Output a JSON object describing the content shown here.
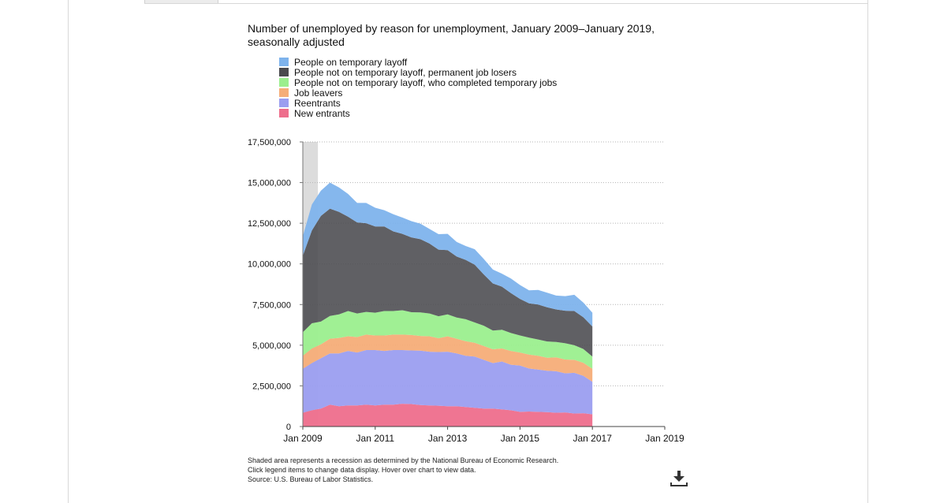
{
  "colors": {
    "temporary_layoff": "#7eb3ec",
    "permanent_job_losers": "#4a4a4e",
    "completed_temporary_jobs": "#9bef8e",
    "job_leavers": "#f5ad78",
    "reentrants": "#9b9ef0",
    "new_entrants": "#ee6e8c",
    "recession": "#dcdcdc",
    "gridline": "#b5b5b5"
  },
  "notes": {
    "recession": "Shaded area represents a recession as determined by the National Bureau of Economic Research.",
    "interaction": "Click legend items to change data display. Hover over chart to view data.",
    "source": "Source: U.S. Bureau of Labor Statistics."
  },
  "download": {
    "icon": "download-icon"
  },
  "chart_data": {
    "type": "area",
    "stacked": true,
    "title": "Number of unemployed by reason for unemployment, January 2009–January 2019, seasonally adjusted",
    "xlabel": "",
    "ylabel": "",
    "legend_position": "top-left",
    "grid": "horizontal dotted",
    "x_ticks": [
      "Jan 2009",
      "Jan 2011",
      "Jan 2013",
      "Jan 2015",
      "Jan 2017",
      "Jan 2019"
    ],
    "xlim": [
      "2009-01",
      "2019-01"
    ],
    "y_ticks": [
      "0",
      "2,500,000",
      "5,000,000",
      "7,500,000",
      "10,000,000",
      "12,500,000",
      "15,000,000",
      "17,500,000"
    ],
    "ylim": [
      0,
      17500000
    ],
    "recession_shading": {
      "start": "2009-01",
      "end": "2009-06"
    },
    "x": [
      "2009-01",
      "2009-04",
      "2009-07",
      "2009-10",
      "2010-01",
      "2010-04",
      "2010-07",
      "2010-10",
      "2011-01",
      "2011-04",
      "2011-07",
      "2011-10",
      "2012-01",
      "2012-04",
      "2012-07",
      "2012-10",
      "2013-01",
      "2013-04",
      "2013-07",
      "2013-10",
      "2014-01",
      "2014-04",
      "2014-07",
      "2014-10",
      "2015-01",
      "2015-04",
      "2015-07",
      "2015-10",
      "2016-01",
      "2016-04",
      "2016-07",
      "2016-10",
      "2017-01"
    ],
    "series": [
      {
        "name": "New entrants",
        "key": "new_entrants",
        "values": [
          850000,
          1000000,
          1100000,
          1350000,
          1250000,
          1300000,
          1300000,
          1350000,
          1300000,
          1350000,
          1350000,
          1400000,
          1380000,
          1320000,
          1300000,
          1280000,
          1250000,
          1250000,
          1200000,
          1150000,
          1100000,
          1100000,
          1050000,
          1000000,
          900000,
          920000,
          900000,
          880000,
          850000,
          870000,
          800000,
          820000,
          750000
        ]
      },
      {
        "name": "Reentrants",
        "key": "reentrants",
        "values": [
          2700000,
          2900000,
          3100000,
          3150000,
          3250000,
          3350000,
          3250000,
          3350000,
          3400000,
          3300000,
          3350000,
          3300000,
          3300000,
          3350000,
          3300000,
          3300000,
          3350000,
          3250000,
          3150000,
          3150000,
          3000000,
          2800000,
          2950000,
          2800000,
          2850000,
          2650000,
          2600000,
          2550000,
          2550000,
          2400000,
          2500000,
          2300000,
          2000000
        ]
      },
      {
        "name": "Job leavers",
        "key": "job_leavers",
        "values": [
          800000,
          900000,
          850000,
          900000,
          950000,
          900000,
          950000,
          950000,
          900000,
          950000,
          950000,
          950000,
          950000,
          900000,
          950000,
          850000,
          950000,
          900000,
          900000,
          850000,
          850000,
          850000,
          800000,
          850000,
          800000,
          850000,
          850000,
          800000,
          850000,
          850000,
          800000,
          800000,
          800000
        ]
      },
      {
        "name": "People not on temporary layoff, who completed temporary jobs",
        "key": "completed_temporary_jobs",
        "values": [
          1450000,
          1550000,
          1400000,
          1400000,
          1450000,
          1550000,
          1450000,
          1400000,
          1400000,
          1500000,
          1450000,
          1500000,
          1400000,
          1450000,
          1400000,
          1350000,
          1350000,
          1300000,
          1350000,
          1250000,
          1250000,
          1150000,
          1150000,
          1100000,
          1050000,
          1050000,
          1000000,
          1000000,
          950000,
          1000000,
          900000,
          850000,
          750000
        ]
      },
      {
        "name": "People not on temporary layoff, permanent job losers",
        "key": "permanent_job_losers",
        "values": [
          4700000,
          5700000,
          6500000,
          6600000,
          6300000,
          5800000,
          5600000,
          5450000,
          5300000,
          5200000,
          4900000,
          4700000,
          4600000,
          4500000,
          4300000,
          4100000,
          3950000,
          3750000,
          3650000,
          3550000,
          3150000,
          2900000,
          2650000,
          2450000,
          2250000,
          2100000,
          2150000,
          2100000,
          2000000,
          2000000,
          2100000,
          1950000,
          1850000
        ]
      },
      {
        "name": "People on temporary layoff",
        "key": "temporary_layoff",
        "values": [
          1200000,
          1600000,
          1550000,
          1600000,
          1500000,
          1400000,
          1200000,
          1250000,
          1150000,
          1000000,
          1050000,
          1000000,
          1000000,
          950000,
          900000,
          950000,
          1000000,
          900000,
          850000,
          950000,
          950000,
          850000,
          800000,
          900000,
          850000,
          800000,
          900000,
          900000,
          850000,
          900000,
          1000000,
          900000,
          850000
        ]
      }
    ]
  }
}
